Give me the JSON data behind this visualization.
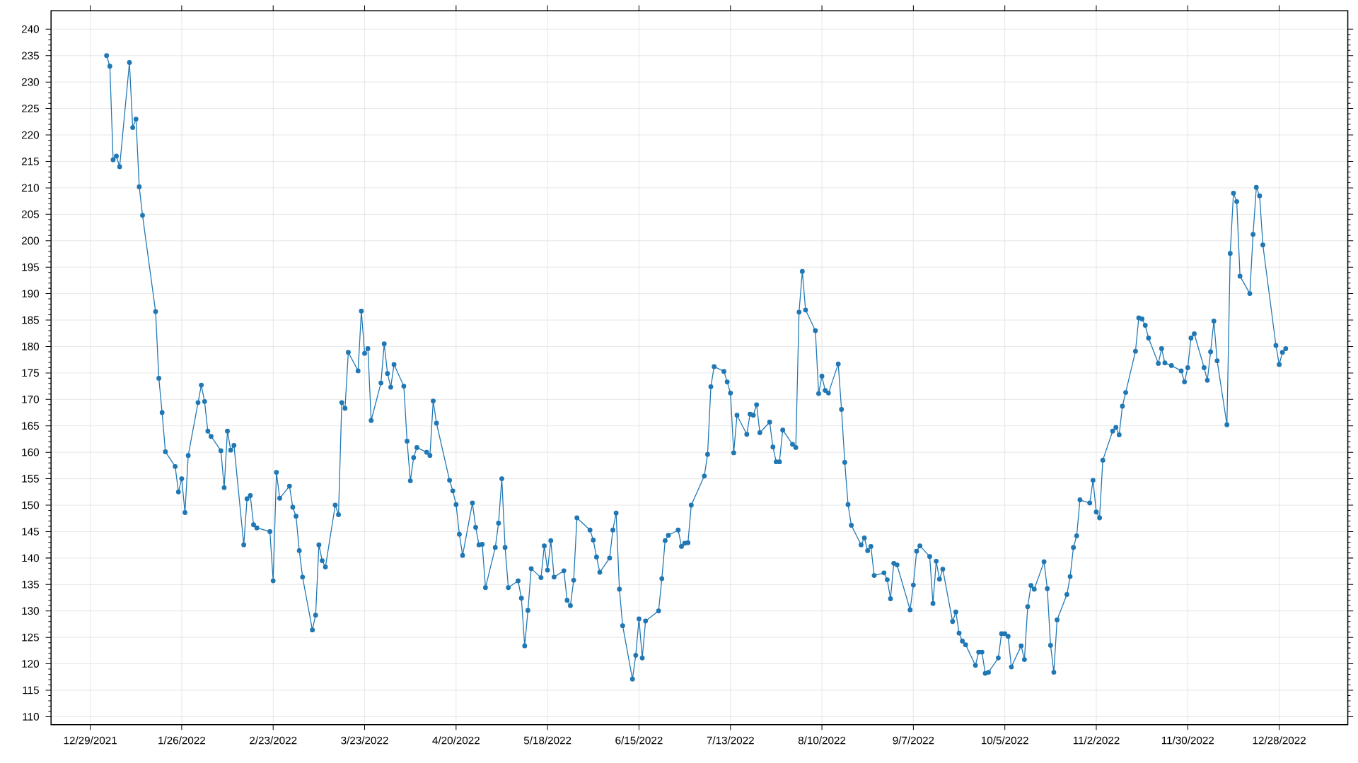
{
  "chart_data": {
    "type": "line",
    "x": [
      "2022-01-03",
      "2022-01-04",
      "2022-01-05",
      "2022-01-06",
      "2022-01-07",
      "2022-01-10",
      "2022-01-11",
      "2022-01-12",
      "2022-01-13",
      "2022-01-14",
      "2022-01-18",
      "2022-01-19",
      "2022-01-20",
      "2022-01-21",
      "2022-01-24",
      "2022-01-25",
      "2022-01-26",
      "2022-01-27",
      "2022-01-28",
      "2022-01-31",
      "2022-02-01",
      "2022-02-02",
      "2022-02-03",
      "2022-02-04",
      "2022-02-07",
      "2022-02-08",
      "2022-02-09",
      "2022-02-10",
      "2022-02-11",
      "2022-02-14",
      "2022-02-15",
      "2022-02-16",
      "2022-02-17",
      "2022-02-18",
      "2022-02-22",
      "2022-02-23",
      "2022-02-24",
      "2022-02-25",
      "2022-02-28",
      "2022-03-01",
      "2022-03-02",
      "2022-03-03",
      "2022-03-04",
      "2022-03-07",
      "2022-03-08",
      "2022-03-09",
      "2022-03-10",
      "2022-03-11",
      "2022-03-14",
      "2022-03-15",
      "2022-03-16",
      "2022-03-17",
      "2022-03-18",
      "2022-03-21",
      "2022-03-22",
      "2022-03-23",
      "2022-03-24",
      "2022-03-25",
      "2022-03-28",
      "2022-03-29",
      "2022-03-30",
      "2022-03-31",
      "2022-04-01",
      "2022-04-04",
      "2022-04-05",
      "2022-04-06",
      "2022-04-07",
      "2022-04-08",
      "2022-04-11",
      "2022-04-12",
      "2022-04-13",
      "2022-04-14",
      "2022-04-18",
      "2022-04-19",
      "2022-04-20",
      "2022-04-21",
      "2022-04-22",
      "2022-04-25",
      "2022-04-26",
      "2022-04-27",
      "2022-04-28",
      "2022-04-29",
      "2022-05-02",
      "2022-05-03",
      "2022-05-04",
      "2022-05-05",
      "2022-05-06",
      "2022-05-09",
      "2022-05-10",
      "2022-05-11",
      "2022-05-12",
      "2022-05-13",
      "2022-05-16",
      "2022-05-17",
      "2022-05-18",
      "2022-05-19",
      "2022-05-20",
      "2022-05-23",
      "2022-05-24",
      "2022-05-25",
      "2022-05-26",
      "2022-05-27",
      "2022-05-31",
      "2022-06-01",
      "2022-06-02",
      "2022-06-03",
      "2022-06-06",
      "2022-06-07",
      "2022-06-08",
      "2022-06-09",
      "2022-06-10",
      "2022-06-13",
      "2022-06-14",
      "2022-06-15",
      "2022-06-16",
      "2022-06-17",
      "2022-06-21",
      "2022-06-22",
      "2022-06-23",
      "2022-06-24",
      "2022-06-27",
      "2022-06-28",
      "2022-06-29",
      "2022-06-30",
      "2022-07-01",
      "2022-07-05",
      "2022-07-06",
      "2022-07-07",
      "2022-07-08",
      "2022-07-11",
      "2022-07-12",
      "2022-07-13",
      "2022-07-14",
      "2022-07-15",
      "2022-07-18",
      "2022-07-19",
      "2022-07-20",
      "2022-07-21",
      "2022-07-22",
      "2022-07-25",
      "2022-07-26",
      "2022-07-27",
      "2022-07-28",
      "2022-07-29",
      "2022-08-01",
      "2022-08-02",
      "2022-08-03",
      "2022-08-04",
      "2022-08-05",
      "2022-08-08",
      "2022-08-09",
      "2022-08-10",
      "2022-08-11",
      "2022-08-12",
      "2022-08-15",
      "2022-08-16",
      "2022-08-17",
      "2022-08-18",
      "2022-08-19",
      "2022-08-22",
      "2022-08-23",
      "2022-08-24",
      "2022-08-25",
      "2022-08-26",
      "2022-08-29",
      "2022-08-30",
      "2022-08-31",
      "2022-09-01",
      "2022-09-02",
      "2022-09-06",
      "2022-09-07",
      "2022-09-08",
      "2022-09-09",
      "2022-09-12",
      "2022-09-13",
      "2022-09-14",
      "2022-09-15",
      "2022-09-16",
      "2022-09-19",
      "2022-09-20",
      "2022-09-21",
      "2022-09-22",
      "2022-09-23",
      "2022-09-26",
      "2022-09-27",
      "2022-09-28",
      "2022-09-29",
      "2022-09-30",
      "2022-10-03",
      "2022-10-04",
      "2022-10-05",
      "2022-10-06",
      "2022-10-07",
      "2022-10-10",
      "2022-10-11",
      "2022-10-12",
      "2022-10-13",
      "2022-10-14",
      "2022-10-17",
      "2022-10-18",
      "2022-10-19",
      "2022-10-20",
      "2022-10-21",
      "2022-10-24",
      "2022-10-25",
      "2022-10-26",
      "2022-10-27",
      "2022-10-28",
      "2022-10-31",
      "2022-11-01",
      "2022-11-02",
      "2022-11-03",
      "2022-11-04",
      "2022-11-07",
      "2022-11-08",
      "2022-11-09",
      "2022-11-10",
      "2022-11-11",
      "2022-11-14",
      "2022-11-15",
      "2022-11-16",
      "2022-11-17",
      "2022-11-18",
      "2022-11-21",
      "2022-11-22",
      "2022-11-23",
      "2022-11-25",
      "2022-11-28",
      "2022-11-29",
      "2022-11-30",
      "2022-12-01",
      "2022-12-02",
      "2022-12-05",
      "2022-12-06",
      "2022-12-07",
      "2022-12-08",
      "2022-12-09",
      "2022-12-12",
      "2022-12-13",
      "2022-12-14",
      "2022-12-15",
      "2022-12-16",
      "2022-12-19",
      "2022-12-20",
      "2022-12-21",
      "2022-12-22",
      "2022-12-23",
      "2022-12-27",
      "2022-12-28",
      "2022-12-29",
      "2022-12-30"
    ],
    "values": [
      235,
      233,
      215.3,
      216,
      214,
      233.7,
      221.4,
      223,
      210.2,
      204.8,
      186.6,
      174,
      167.5,
      160.1,
      157.3,
      152.5,
      155,
      148.6,
      159.4,
      169.4,
      172.7,
      169.6,
      164,
      163,
      160.3,
      153.3,
      164,
      160.4,
      161.3,
      142.5,
      151.2,
      151.8,
      146.3,
      145.7,
      145,
      135.7,
      156.2,
      151.3,
      153.6,
      149.6,
      147.9,
      141.4,
      136.4,
      126.4,
      129.2,
      142.5,
      139.5,
      138.3,
      150,
      148.2,
      169.4,
      168.3,
      178.9,
      175.4,
      186.7,
      178.7,
      179.6,
      166,
      173.1,
      180.5,
      174.9,
      172.3,
      176.6,
      172.5,
      162.1,
      154.6,
      159,
      160.9,
      160,
      159.4,
      169.7,
      165.5,
      154.7,
      152.7,
      150.1,
      144.5,
      140.5,
      150.4,
      145.8,
      142.5,
      142.6,
      134.4,
      142,
      146.6,
      155,
      142,
      134.4,
      135.7,
      132.4,
      123.4,
      130.1,
      138,
      136.3,
      142.3,
      137.7,
      143.3,
      136.4,
      137.6,
      132,
      131,
      135.8,
      147.6,
      145.3,
      143.4,
      140.2,
      137.3,
      140,
      145.3,
      148.5,
      134.1,
      127.2,
      117.1,
      121.6,
      128.5,
      121.1,
      128.1,
      130,
      136.1,
      143.3,
      144.3,
      145.3,
      142.2,
      142.8,
      142.9,
      150,
      155.5,
      159.6,
      172.4,
      176.2,
      175.3,
      173.3,
      171.2,
      159.9,
      167,
      163.4,
      167.2,
      167,
      169,
      163.7,
      165.7,
      161,
      158.2,
      158.2,
      164.2,
      161.5,
      160.9,
      186.5,
      194.2,
      186.9,
      183,
      171.1,
      174.4,
      171.7,
      171.2,
      176.7,
      168.1,
      158.1,
      150.1,
      146.2,
      142.5,
      143.8,
      141.4,
      142.2,
      136.7,
      137.2,
      135.9,
      132.3,
      139,
      138.7,
      130.2,
      134.9,
      141.3,
      142.3,
      140.3,
      131.4,
      139.4,
      136,
      137.9,
      128,
      129.8,
      125.8,
      124.3,
      123.6,
      119.7,
      122.2,
      122.2,
      118.2,
      118.4,
      121.1,
      125.7,
      125.7,
      125.2,
      119.4,
      123.4,
      120.8,
      130.8,
      134.8,
      134.1,
      139.3,
      134.2,
      123.5,
      118.4,
      128.3,
      133.1,
      136.5,
      142,
      144.2,
      151,
      150.4,
      154.7,
      148.7,
      147.6,
      158.5,
      164,
      164.7,
      163.3,
      168.7,
      171.3,
      179.1,
      185.4,
      185.2,
      184,
      181.6,
      176.8,
      179.6,
      176.9,
      176.4,
      175.4,
      173.3,
      176,
      181.6,
      182.4,
      176,
      173.6,
      179,
      184.8,
      177.3,
      165.2,
      197.6,
      209,
      207.4,
      193.3,
      190,
      201.2,
      210.1,
      208.5,
      199.2,
      180.2,
      176.6,
      178.9,
      179.6
    ],
    "color": "#1f77b4",
    "marker": "circle",
    "line_style": "solid",
    "grid": true,
    "xlim": [
      "2021-12-17",
      "2023-01-18"
    ],
    "xticks": [
      {
        "value": "2021-12-29",
        "label": "12/29/2021"
      },
      {
        "value": "2022-01-26",
        "label": "1/26/2022"
      },
      {
        "value": "2022-02-23",
        "label": "2/23/2022"
      },
      {
        "value": "2022-03-23",
        "label": "3/23/2022"
      },
      {
        "value": "2022-04-20",
        "label": "4/20/2022"
      },
      {
        "value": "2022-05-18",
        "label": "5/18/2022"
      },
      {
        "value": "2022-06-15",
        "label": "6/15/2022"
      },
      {
        "value": "2022-07-13",
        "label": "7/13/2022"
      },
      {
        "value": "2022-08-10",
        "label": "8/10/2022"
      },
      {
        "value": "2022-09-07",
        "label": "9/7/2022"
      },
      {
        "value": "2022-10-05",
        "label": "10/5/2022"
      },
      {
        "value": "2022-11-02",
        "label": "11/2/2022"
      },
      {
        "value": "2022-11-30",
        "label": "11/30/2022"
      },
      {
        "value": "2022-12-28",
        "label": "12/28/2022"
      }
    ],
    "ylim": [
      108.5,
      243.5
    ],
    "yticks": [
      110,
      115,
      120,
      125,
      130,
      135,
      140,
      145,
      150,
      155,
      160,
      165,
      170,
      175,
      180,
      185,
      190,
      195,
      200,
      205,
      210,
      215,
      220,
      225,
      230,
      235,
      240
    ]
  }
}
